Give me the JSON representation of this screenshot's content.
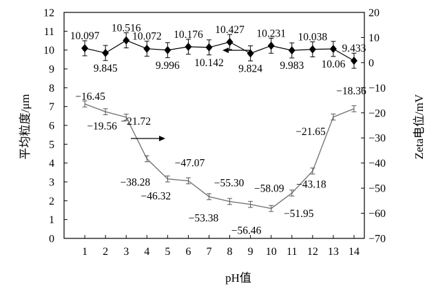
{
  "chart_data": {
    "type": "line",
    "xlabel": "pH值",
    "ylabel_left": "平均粒度/μm",
    "ylabel_right": "Zeta电位/mV",
    "x": [
      1,
      2,
      3,
      4,
      5,
      6,
      7,
      8,
      9,
      10,
      11,
      12,
      13,
      14
    ],
    "xlim": [
      0,
      14.5
    ],
    "ylim_left": [
      0,
      12
    ],
    "ylim_right": [
      -70,
      20
    ],
    "yticks_left": [
      0,
      1,
      2,
      3,
      4,
      5,
      6,
      7,
      8,
      9,
      10,
      11,
      12
    ],
    "yticks_right": [
      20,
      10,
      0,
      -10,
      -20,
      -30,
      -40,
      -50,
      -60,
      -70
    ],
    "grid": false,
    "series": [
      {
        "axis": "left",
        "marker": "diamond",
        "color": "#000000",
        "values": [
          10.097,
          9.845,
          10.516,
          10.072,
          9.996,
          10.176,
          10.142,
          10.427,
          9.824,
          10.231,
          9.983,
          10.038,
          10.06,
          9.433
        ],
        "labels": [
          "10.097",
          "9.845",
          "10.516",
          "10.072",
          "9.996",
          "10.176",
          "10.142",
          "10.427",
          "9.824",
          "10.231",
          "9.983",
          "10.038",
          "10.06",
          "9.433"
        ],
        "error": 0.4
      },
      {
        "axis": "right",
        "marker": "none",
        "color": "#777777",
        "values": [
          -16.45,
          -19.56,
          -21.72,
          -38.28,
          -46.32,
          -47.07,
          -53.38,
          -55.3,
          -56.46,
          -58.09,
          -51.95,
          -43.18,
          -21.65,
          -18.36
        ],
        "labels": [
          "−16.45",
          "−19.56",
          "−21.72",
          "−38.28",
          "−46.32",
          "−47.07",
          "−53.38",
          "−55.30",
          "−56.46",
          "−58.09",
          "−51.95",
          "−43.18",
          "−21.65",
          "−18.36"
        ],
        "error": 1.2
      }
    ]
  }
}
